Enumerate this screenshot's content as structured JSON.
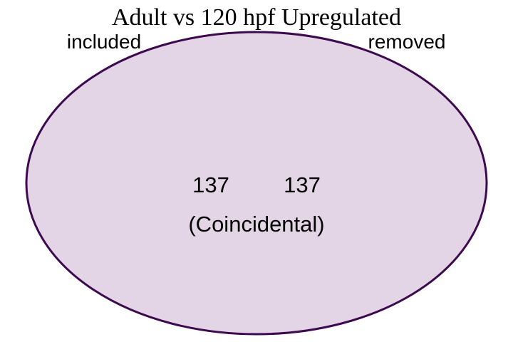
{
  "title": "Adult vs 120 hpf Upregulated",
  "sets": [
    {
      "label": "included",
      "count": "137"
    },
    {
      "label": "removed",
      "count": "137"
    }
  ],
  "relation": "(Coincidental)",
  "colors": {
    "fill": "#e3d5e6",
    "stroke": "#3d0a4f",
    "text": "#000000",
    "background": "#ffffff"
  }
}
